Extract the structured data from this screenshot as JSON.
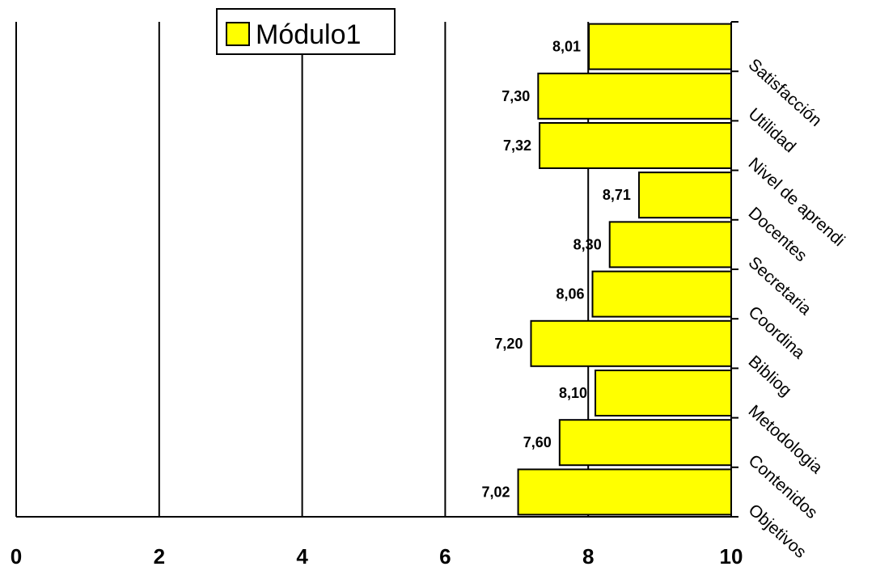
{
  "chart_data": {
    "type": "bar",
    "orientation": "horizontal",
    "reversed_value_axis": true,
    "categories": [
      "Objetivos",
      "Contenidos",
      "Metodologia",
      "Bibliog",
      "Coordina",
      "Secretaria",
      "Docentes",
      "Nivel de aprendi",
      "Utilidad",
      "Satisfacción"
    ],
    "series": [
      {
        "name": "Módulo1",
        "values": [
          7.02,
          7.6,
          8.1,
          7.2,
          8.06,
          8.3,
          8.71,
          7.32,
          7.3,
          8.01
        ],
        "value_labels": [
          "7,02",
          "7,60",
          "8,10",
          "7,20",
          "8,06",
          "8,30",
          "8,71",
          "7,32",
          "7,30",
          "8,01"
        ],
        "color": "#FFFF00"
      }
    ],
    "xlim": [
      0,
      10
    ],
    "x_ticks": [
      0,
      2,
      4,
      6,
      8,
      10
    ],
    "grid": "vertical",
    "legend_position": "top"
  }
}
